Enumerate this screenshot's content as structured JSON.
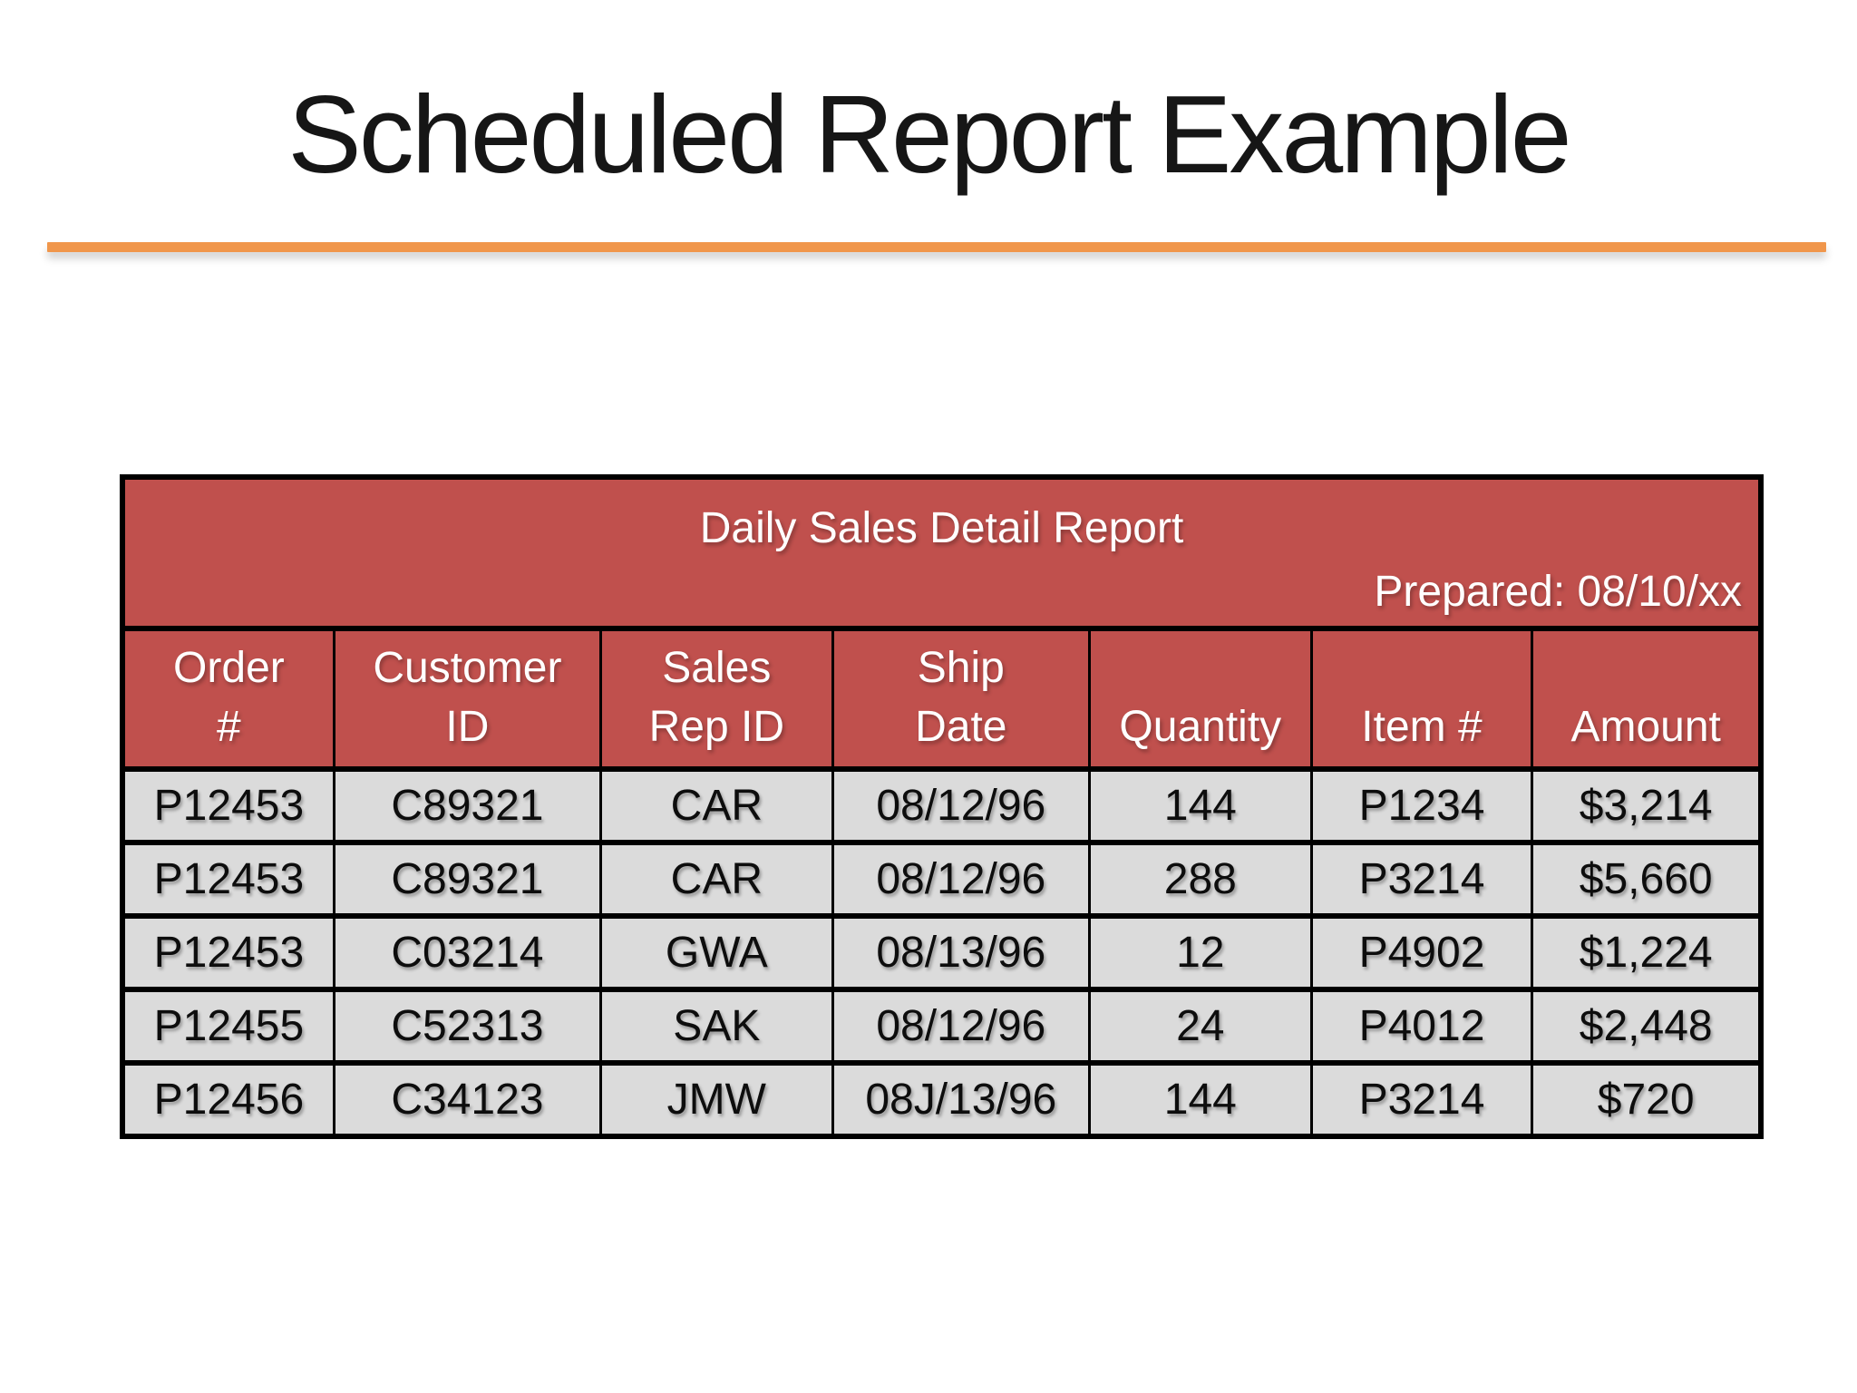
{
  "slide": {
    "title": "Scheduled Report Example"
  },
  "colors": {
    "accent_line_orange": "#F0964B",
    "table_header_red": "#C0504D",
    "data_row_gray": "#DBDBDB",
    "border_black": "#000000"
  },
  "table": {
    "title": "Daily Sales Detail Report",
    "prepared": "Prepared: 08/10/xx",
    "columns": [
      "Order\n#",
      "Customer\nID",
      "Sales\nRep ID",
      "Ship\nDate",
      "Quantity",
      "Item #",
      "Amount"
    ],
    "rows": [
      [
        "P12453",
        "C89321",
        "CAR",
        "08/12/96",
        "144",
        "P1234",
        "$3,214"
      ],
      [
        "P12453",
        "C89321",
        "CAR",
        "08/12/96",
        "288",
        "P3214",
        "$5,660"
      ],
      [
        "P12453",
        "C03214",
        "GWA",
        "08/13/96",
        "12",
        "P4902",
        "$1,224"
      ],
      [
        "P12455",
        "C52313",
        "SAK",
        "08/12/96",
        "24",
        "P4012",
        "$2,448"
      ],
      [
        "P12456",
        "C34123",
        "JMW",
        "08J/13/96",
        "144",
        "P3214",
        "$720"
      ]
    ]
  }
}
